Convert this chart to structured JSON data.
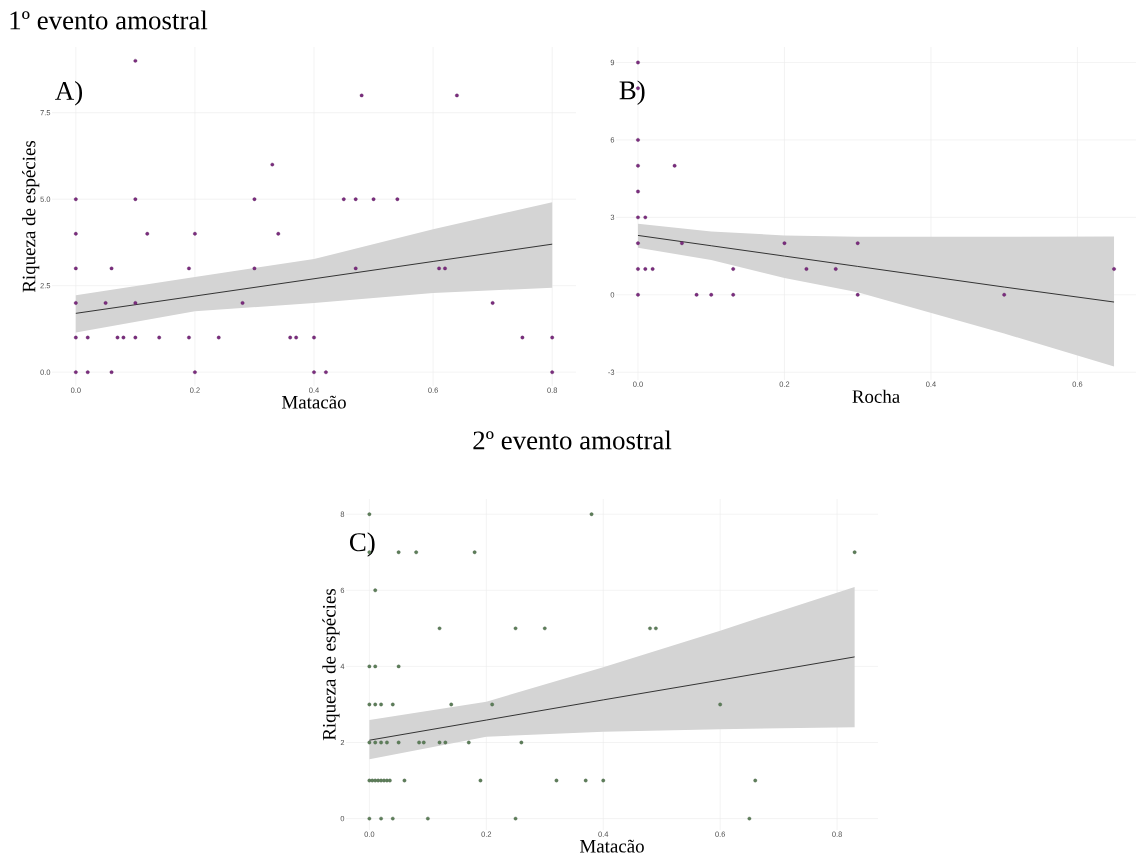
{
  "chart_data": [
    {
      "type": "scatter",
      "title": "1º evento amostral",
      "xlabel": "Matacão",
      "ylabel": "Riqueza de espécies",
      "annotations": [
        "A)"
      ],
      "xlim": [
        -0.04,
        0.84
      ],
      "ylim": [
        -0.4,
        9.4
      ],
      "xticks": [
        {
          "value": 0,
          "label": "0.0"
        },
        {
          "value": 0.2,
          "label": "0.2"
        },
        {
          "value": 0.4,
          "label": "0.4"
        },
        {
          "value": 0.6,
          "label": "0.6"
        },
        {
          "value": 0.8,
          "label": "0.8"
        }
      ],
      "yticks": [
        {
          "value": 0,
          "label": "0.0"
        },
        {
          "value": 2.5,
          "label": "2.5"
        },
        {
          "value": 5,
          "label": "5.0"
        },
        {
          "value": 7.5,
          "label": "7.5"
        }
      ],
      "grid": true,
      "series": [
        {
          "color": "#7b2d7e",
          "marker": "circle",
          "x": [
            0.1,
            0.48,
            0.64,
            0.33,
            0,
            0.1,
            0.3,
            0.45,
            0.47,
            0.5,
            0.54,
            0,
            0.12,
            0.2,
            0.34,
            0,
            0.06,
            0.19,
            0.3,
            0.47,
            0.61,
            0.62,
            0,
            0.05,
            0.1,
            0.28,
            0.7,
            0,
            0.02,
            0.07,
            0.08,
            0.1,
            0.14,
            0.19,
            0.24,
            0.36,
            0.37,
            0.4,
            0.75,
            0.8,
            0,
            0.02,
            0.06,
            0.2,
            0.4,
            0.42,
            0.8
          ],
          "values": [
            9,
            8,
            8,
            6,
            5,
            5,
            5,
            5,
            5,
            5,
            5,
            4,
            4,
            4,
            4,
            3,
            3,
            3,
            3,
            3,
            3,
            3,
            2,
            2,
            2,
            2,
            2,
            1,
            1,
            1,
            1,
            1,
            1,
            1,
            1,
            1,
            1,
            1,
            1,
            1,
            0,
            0,
            0,
            0,
            0,
            0,
            0
          ]
        },
        {
          "type": "line",
          "marker": "none",
          "color": "#333333",
          "x": [
            0,
            0.2,
            0.4,
            0.6,
            0.8
          ],
          "values": [
            1.7,
            2.2,
            2.7,
            3.2,
            3.7
          ],
          "lower": [
            1.15,
            1.76,
            2.0,
            2.29,
            2.44
          ],
          "upper": [
            2.22,
            2.75,
            3.27,
            4.13,
            4.91
          ]
        }
      ]
    },
    {
      "type": "scatter",
      "xlabel": "Rocha",
      "annotations": [
        "B)"
      ],
      "xlim": [
        -0.03,
        0.68
      ],
      "ylim": [
        -3.3,
        9.6
      ],
      "xticks": [
        {
          "value": 0,
          "label": "0.0"
        },
        {
          "value": 0.2,
          "label": "0.2"
        },
        {
          "value": 0.4,
          "label": "0.4"
        },
        {
          "value": 0.6,
          "label": "0.6"
        }
      ],
      "yticks": [
        -3,
        0,
        3,
        6,
        9
      ],
      "grid": true,
      "series": [
        {
          "color": "#7b2d7e",
          "marker": "circle",
          "x": [
            0,
            0,
            0,
            0,
            0,
            0,
            0,
            0,
            0,
            0.05,
            0.01,
            0.01,
            0.06,
            0.02,
            0.08,
            0.1,
            0.13,
            0.13,
            0.2,
            0.23,
            0.27,
            0.3,
            0.3,
            0.5,
            0.65
          ],
          "values": [
            9,
            8,
            6,
            5,
            4,
            3,
            2,
            1,
            0,
            5,
            3,
            1,
            2,
            1,
            0,
            0,
            1,
            0,
            2,
            1,
            1,
            2,
            0,
            0,
            1
          ]
        },
        {
          "type": "line",
          "marker": "none",
          "color": "#333333",
          "x": [
            0,
            0.1,
            0.2,
            0.3,
            0.5,
            0.65
          ],
          "values": [
            2.3,
            1.9,
            1.5,
            1.1,
            0.3,
            -0.28
          ],
          "lower": [
            1.82,
            1.35,
            0.65,
            0.1,
            -1.5,
            -2.78
          ],
          "upper": [
            2.75,
            2.45,
            2.3,
            2.25,
            2.25,
            2.26
          ]
        }
      ]
    },
    {
      "type": "scatter",
      "title": "2º evento amostral",
      "xlabel": "Matacão",
      "ylabel": "Riqueza de espécies",
      "annotations": [
        "C)"
      ],
      "xlim": [
        -0.04,
        0.87
      ],
      "ylim": [
        -0.3,
        8.4
      ],
      "xticks": [
        {
          "value": 0,
          "label": "0.0"
        },
        {
          "value": 0.2,
          "label": "0.2"
        },
        {
          "value": 0.4,
          "label": "0.4"
        },
        {
          "value": 0.6,
          "label": "0.6"
        },
        {
          "value": 0.8,
          "label": "0.8"
        }
      ],
      "yticks": [
        0,
        2,
        4,
        6,
        8
      ],
      "grid": true,
      "series": [
        {
          "color": "#5e7f5a",
          "marker": "circle",
          "x": [
            0,
            0.38,
            0,
            0.05,
            0.08,
            0.18,
            0.83,
            0.01,
            0.12,
            0.25,
            0.3,
            0.48,
            0.49,
            0,
            0.01,
            0.05,
            0,
            0.01,
            0.02,
            0.04,
            0.14,
            0.21,
            0.6,
            0,
            0.01,
            0.02,
            0.03,
            0.05,
            0.085,
            0.093,
            0.12,
            0.13,
            0.17,
            0.26,
            0,
            0.005,
            0.01,
            0.015,
            0.02,
            0.025,
            0.03,
            0.035,
            0.06,
            0.19,
            0.32,
            0.37,
            0.4,
            0.66,
            0,
            0.02,
            0.04,
            0.1,
            0.25,
            0.65
          ],
          "values": [
            8,
            8,
            7,
            7,
            7,
            7,
            7,
            6,
            5,
            5,
            5,
            5,
            5,
            4,
            4,
            4,
            3,
            3,
            3,
            3,
            3,
            3,
            3,
            2,
            2,
            2,
            2,
            2,
            2,
            2,
            2,
            2,
            2,
            2,
            1,
            1,
            1,
            1,
            1,
            1,
            1,
            1,
            1,
            1,
            1,
            1,
            1,
            1,
            0,
            0,
            0,
            0,
            0,
            0
          ]
        },
        {
          "type": "line",
          "marker": "none",
          "color": "#333333",
          "x": [
            0,
            0.2,
            0.4,
            0.6,
            0.83
          ],
          "values": [
            2.06,
            2.59,
            3.12,
            3.64,
            4.25
          ],
          "lower": [
            1.56,
            2.15,
            2.28,
            2.35,
            2.4
          ],
          "upper": [
            2.59,
            3.07,
            3.98,
            4.94,
            6.09
          ]
        }
      ]
    }
  ]
}
